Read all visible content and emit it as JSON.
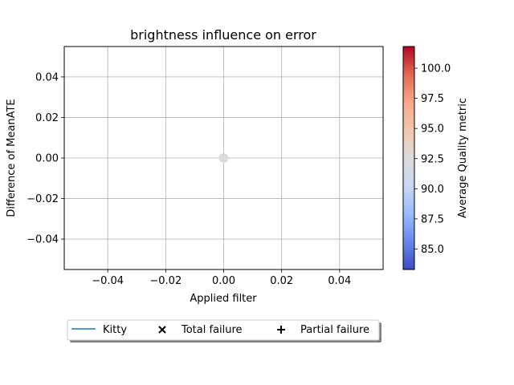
{
  "chart_data": {
    "type": "scatter",
    "title": "brightness influence on error",
    "xlabel": "Applied filter",
    "ylabel": "Difference of MeanATE",
    "xlim": [
      -0.055,
      0.055
    ],
    "ylim": [
      -0.055,
      0.055
    ],
    "xticks": [
      -0.04,
      -0.02,
      0.0,
      0.02,
      0.04
    ],
    "xtick_labels": [
      "−0.04",
      "−0.02",
      "0.00",
      "0.02",
      "0.04"
    ],
    "yticks": [
      -0.04,
      -0.02,
      0.0,
      0.02,
      0.04
    ],
    "ytick_labels": [
      "−0.04",
      "−0.02",
      "0.00",
      "0.02",
      "0.04"
    ],
    "grid": true,
    "points": [
      {
        "x": 0.0,
        "y": 0.0,
        "quality": 92.5,
        "color": "#dddcdc"
      }
    ],
    "colorbar": {
      "label": "Average Quality metric",
      "colormap": "coolwarm",
      "range": [
        83.3,
        101.8
      ],
      "ticks": [
        85.0,
        87.5,
        90.0,
        92.5,
        95.0,
        97.5,
        100.0
      ],
      "tick_labels": [
        "85.0",
        "87.5",
        "90.0",
        "92.5",
        "95.0",
        "97.5",
        "100.0"
      ],
      "stops": [
        "#3b4cc0",
        "#6788ee",
        "#9abbff",
        "#c9d7f0",
        "#dddcdc",
        "#f4c6ad",
        "#f7a889",
        "#e26952",
        "#b40426"
      ]
    },
    "legend": {
      "placement": "bottom",
      "entries": [
        {
          "label": "Kitty",
          "marker": "line",
          "color": "#1f77b4"
        },
        {
          "label": "Total failure",
          "marker": "x",
          "color": "#000000"
        },
        {
          "label": "Partial failure",
          "marker": "+",
          "color": "#000000"
        }
      ]
    }
  }
}
